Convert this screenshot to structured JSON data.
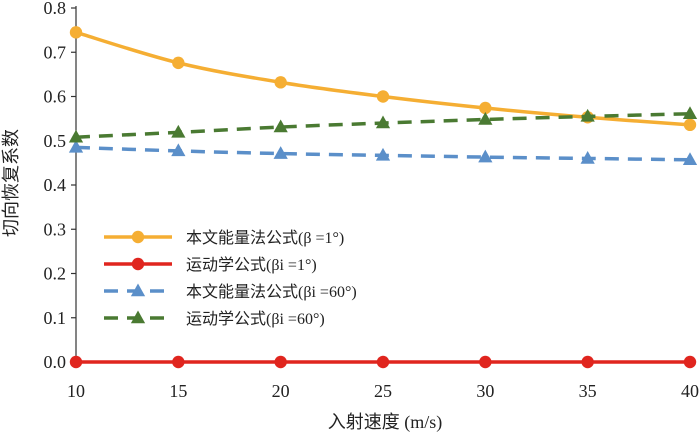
{
  "chart_data": {
    "type": "line",
    "title": "",
    "xlabel": "入射速度 (m/s)",
    "ylabel": "切向恢复系数",
    "x": [
      10,
      15,
      20,
      25,
      30,
      35,
      40
    ],
    "xlim": [
      10,
      40
    ],
    "ylim": [
      0,
      0.8
    ],
    "xticks": [
      10,
      15,
      20,
      25,
      30,
      35,
      40
    ],
    "x_tick_labels": [
      "10",
      "15",
      "20",
      "25",
      "30",
      "35",
      "40"
    ],
    "yticks": [
      0,
      0.1,
      0.2,
      0.3,
      0.4,
      0.5,
      0.6,
      0.7,
      0.8
    ],
    "y_tick_labels": [
      "0.0",
      "0.1",
      "0.2",
      "0.3",
      "0.4",
      "0.5",
      "0.6",
      "0.7",
      "0.8"
    ],
    "grid": false,
    "legend_position": "center-left",
    "series": [
      {
        "name": "本文能量法公式(β =1°)",
        "values": [
          0.745,
          0.676,
          0.632,
          0.6,
          0.574,
          0.553,
          0.536
        ],
        "color": "#F5AE33",
        "marker": "circle",
        "line_style": "solid"
      },
      {
        "name": "运动学公式(βi =1°)",
        "values": [
          0.0,
          0.0,
          0.0,
          0.0,
          0.0,
          0.0,
          0.0
        ],
        "color": "#E0251E",
        "marker": "circle",
        "line_style": "solid"
      },
      {
        "name": "本文能量法公式(βi =60°)",
        "values": [
          0.485,
          0.477,
          0.471,
          0.467,
          0.463,
          0.46,
          0.457
        ],
        "color": "#5B8FC9",
        "marker": "triangle",
        "line_style": "dashed"
      },
      {
        "name": "运动学公式(βi =60°)",
        "values": [
          0.508,
          0.519,
          0.531,
          0.54,
          0.548,
          0.555,
          0.561
        ],
        "color": "#4A7A32",
        "marker": "triangle",
        "line_style": "dashed"
      }
    ]
  }
}
